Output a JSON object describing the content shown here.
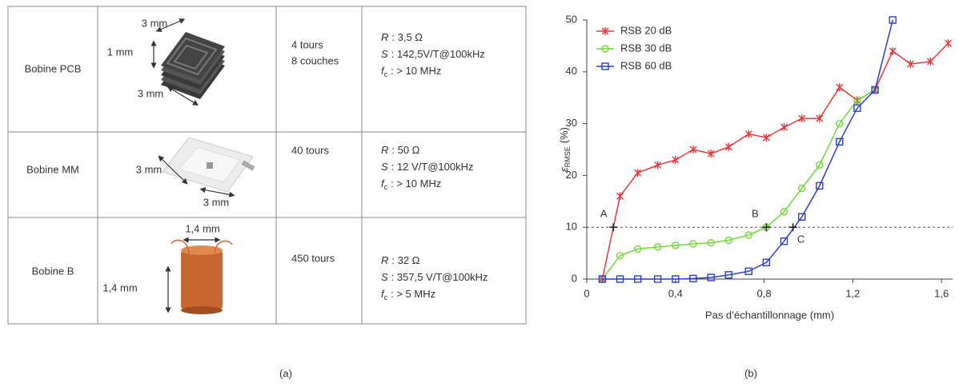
{
  "table": {
    "rows": [
      {
        "name": "Bobine PCB",
        "dimensions": [
          "3 mm",
          "1 mm",
          "3 mm"
        ],
        "turns": [
          "4 tours",
          "8 couches"
        ],
        "specs": [
          {
            "symbol": "R",
            "text": ": 3,5 Ω"
          },
          {
            "symbol": "S",
            "text": ": 142,5V/T@100kHz"
          },
          {
            "symbol": "f",
            "sub": "c",
            "text": ": > 10 MHz"
          }
        ]
      },
      {
        "name": "Bobine MM",
        "dimensions": [
          "3 mm",
          "3 mm"
        ],
        "turns": [
          "40 tours"
        ],
        "specs": [
          {
            "symbol": "R",
            "text": ": 50 Ω"
          },
          {
            "symbol": "S",
            "text": ": 12 V/T@100kHz"
          },
          {
            "symbol": "f",
            "sub": "c",
            "text": ": > 10 MHz"
          }
        ]
      },
      {
        "name": "Bobine B",
        "dimensions": [
          "1,4 mm",
          "1,4 mm"
        ],
        "turns": [
          "450 tours"
        ],
        "specs": [
          {
            "symbol": "R",
            "text": ": 32 Ω"
          },
          {
            "symbol": "S",
            "text": ": 357,5 V/T@100kHz"
          },
          {
            "symbol": "f",
            "sub": "c",
            "text": ": > 5 MHz"
          }
        ]
      }
    ]
  },
  "captions": [
    "(a)",
    "(b)"
  ],
  "chart_data": {
    "type": "line",
    "xlabel": "Pas d’échantillonnage (mm)",
    "ylabel": {
      "symbol": "ε",
      "sub": "RMSE",
      "text": "(%)"
    },
    "x": [
      0.07,
      0.15,
      0.23,
      0.32,
      0.4,
      0.48,
      0.56,
      0.64,
      0.73,
      0.81,
      0.89,
      0.97,
      1.05,
      1.14,
      1.22,
      1.3,
      1.38,
      1.46,
      1.55,
      1.63
    ],
    "series": [
      {
        "name": "RSB 20 dB",
        "color": "#e8383d",
        "marker": "star",
        "values": [
          0,
          16,
          20.5,
          22,
          23,
          25,
          24.2,
          25.5,
          28,
          27.3,
          29.3,
          31,
          31,
          37,
          34.5,
          36.5,
          44,
          41.5,
          42,
          45.5
        ]
      },
      {
        "name": "RSB 30 dB",
        "color": "#6fd83a",
        "marker": "circle",
        "values": [
          0,
          4.5,
          5.8,
          6.2,
          6.5,
          6.8,
          7,
          7.5,
          8.5,
          10,
          13,
          17.5,
          22,
          30,
          34.5,
          36.5,
          null,
          null,
          null,
          null
        ]
      },
      {
        "name": "RSB 60 dB",
        "color": "#2a3fc8",
        "marker": "square",
        "values": [
          0,
          0,
          0,
          0,
          0,
          0.1,
          0.3,
          0.8,
          1.5,
          3.2,
          7.3,
          12,
          18,
          26.5,
          33,
          36.5,
          50,
          null,
          null,
          null
        ]
      }
    ],
    "xlim": [
      0,
      1.65
    ],
    "ylim": [
      0,
      50
    ],
    "xticks": [
      0,
      {
        "value": 0.4,
        "label": "0,4"
      },
      {
        "value": 0.8,
        "label": "0,8"
      },
      {
        "value": 1.2,
        "label": "1,2"
      },
      {
        "value": 1.6,
        "label": "1,6"
      }
    ],
    "yticks": [
      0,
      10,
      20,
      30,
      40,
      50
    ],
    "threshold": 10,
    "annotations": [
      {
        "text": "A",
        "x": 0.12,
        "y": 10,
        "color": "#e8383d"
      },
      {
        "text": "B",
        "x": 0.81,
        "y": 10,
        "color": "#6fd83a"
      },
      {
        "text": "C",
        "x": 0.93,
        "y": 10,
        "color": "#2a3fc8"
      }
    ],
    "legend": "upper left"
  }
}
